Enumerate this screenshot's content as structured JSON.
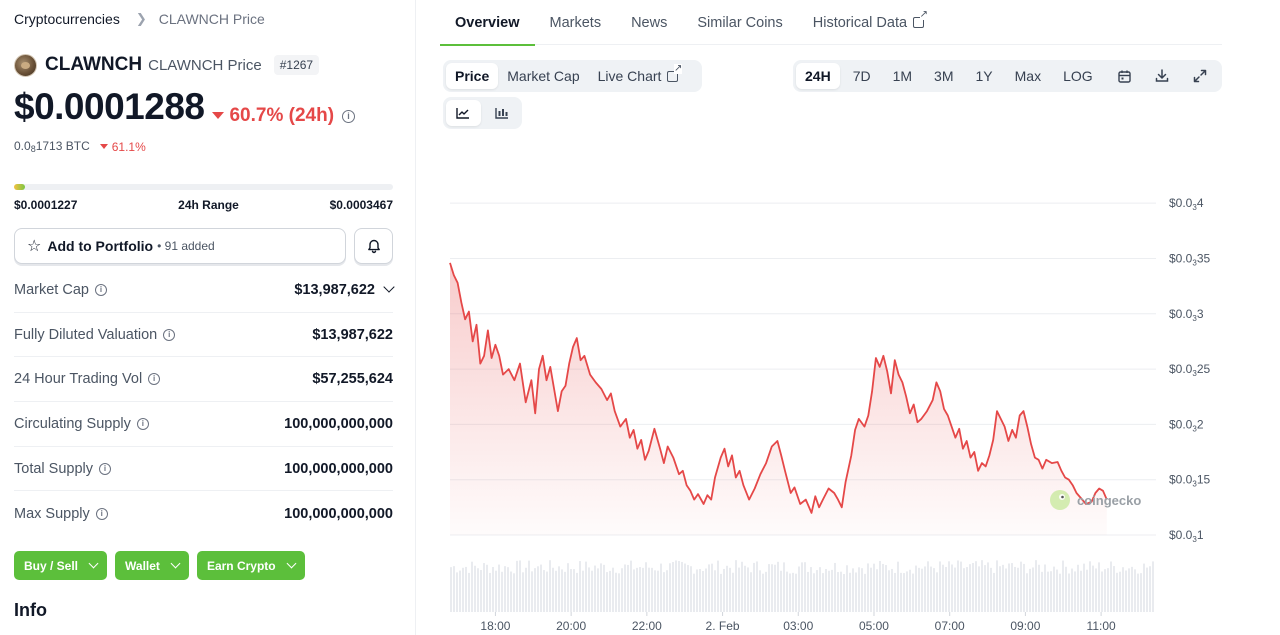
{
  "breadcrumb": {
    "root": "Cryptocurrencies",
    "current": "CLAWNCH Price"
  },
  "coin": {
    "name": "CLAWNCH",
    "subtitle": "CLAWNCH Price",
    "rank": "#1267",
    "price": "$0.0001288",
    "change_24h": "60.7% (24h)",
    "btc_price_prefix": "0.0",
    "btc_price_sub": "8",
    "btc_price_suffix": "1713 BTC",
    "btc_change": "61.1%"
  },
  "range": {
    "low": "$0.0001227",
    "label": "24h Range",
    "high": "$0.0003467",
    "position": 0.03
  },
  "portfolio": {
    "label": "Add to Portfolio",
    "added": "• 91 added"
  },
  "stats": [
    {
      "label": "Market Cap",
      "value": "$13,987,622",
      "dropdown": true
    },
    {
      "label": "Fully Diluted Valuation",
      "value": "$13,987,622"
    },
    {
      "label": "24 Hour Trading Vol",
      "value": "$57,255,624"
    },
    {
      "label": "Circulating Supply",
      "value": "100,000,000,000"
    },
    {
      "label": "Total Supply",
      "value": "100,000,000,000"
    },
    {
      "label": "Max Supply",
      "value": "100,000,000,000"
    }
  ],
  "actions": {
    "buy_sell": "Buy / Sell",
    "wallet": "Wallet",
    "earn": "Earn Crypto"
  },
  "info_heading": "Info",
  "tabs": {
    "overview": "Overview",
    "markets": "Markets",
    "news": "News",
    "similar": "Similar Coins",
    "historical": "Historical Data"
  },
  "chart_controls": {
    "price": "Price",
    "market_cap": "Market Cap",
    "live_chart": "Live Chart",
    "ranges": [
      "24H",
      "7D",
      "1M",
      "3M",
      "1Y",
      "Max",
      "LOG"
    ],
    "active_range": "24H"
  },
  "chart_data": {
    "type": "area",
    "color": "#e54848",
    "watermark": "coingecko",
    "ylim": [
      0.0001,
      0.00043
    ],
    "y_ticks": [
      {
        "value": 0.0004,
        "prefix": "$0.0",
        "sub": "3",
        "suffix": "4"
      },
      {
        "value": 0.00035,
        "prefix": "$0.0",
        "sub": "3",
        "suffix": "35"
      },
      {
        "value": 0.0003,
        "prefix": "$0.0",
        "sub": "3",
        "suffix": "3"
      },
      {
        "value": 0.00025,
        "prefix": "$0.0",
        "sub": "3",
        "suffix": "25"
      },
      {
        "value": 0.0002,
        "prefix": "$0.0",
        "sub": "3",
        "suffix": "2"
      },
      {
        "value": 0.00015,
        "prefix": "$0.0",
        "sub": "3",
        "suffix": "15"
      },
      {
        "value": 0.0001,
        "prefix": "$0.0",
        "sub": "3",
        "suffix": "1"
      }
    ],
    "x_ticks": [
      "18:00",
      "20:00",
      "22:00",
      "2. Feb",
      "03:00",
      "05:00",
      "07:00",
      "09:00",
      "11:00"
    ],
    "x_tick_hours": [
      1,
      3,
      5,
      7,
      9,
      11,
      13,
      15,
      17
    ],
    "x_range_hours": [
      -0.2,
      18.45
    ],
    "series": [
      {
        "values": [
          [
            -0.2,
            0.000346
          ],
          [
            -0.1,
            0.000335
          ],
          [
            0.0,
            0.000328
          ],
          [
            0.1,
            0.00031
          ],
          [
            0.2,
            0.000295
          ],
          [
            0.3,
            0.000302
          ],
          [
            0.4,
            0.000275
          ],
          [
            0.5,
            0.00029
          ],
          [
            0.6,
            0.000255
          ],
          [
            0.7,
            0.000262
          ],
          [
            0.8,
            0.000285
          ],
          [
            0.9,
            0.00026
          ],
          [
            1.0,
            0.000272
          ],
          [
            1.1,
            0.000262
          ],
          [
            1.2,
            0.000245
          ],
          [
            1.35,
            0.00025
          ],
          [
            1.5,
            0.00024
          ],
          [
            1.65,
            0.000255
          ],
          [
            1.8,
            0.00022
          ],
          [
            1.95,
            0.00024
          ],
          [
            2.05,
            0.00021
          ],
          [
            2.15,
            0.00025
          ],
          [
            2.25,
            0.000262
          ],
          [
            2.35,
            0.00024
          ],
          [
            2.45,
            0.000252
          ],
          [
            2.55,
            0.000232
          ],
          [
            2.65,
            0.000212
          ],
          [
            2.75,
            0.00023
          ],
          [
            2.85,
            0.000235
          ],
          [
            2.95,
            0.000255
          ],
          [
            3.05,
            0.00027
          ],
          [
            3.15,
            0.000278
          ],
          [
            3.25,
            0.000258
          ],
          [
            3.35,
            0.000262
          ],
          [
            3.5,
            0.000245
          ],
          [
            3.65,
            0.000238
          ],
          [
            3.8,
            0.000232
          ],
          [
            3.95,
            0.000222
          ],
          [
            4.05,
            0.000228
          ],
          [
            4.15,
            0.000212
          ],
          [
            4.3,
            0.000198
          ],
          [
            4.45,
            0.000205
          ],
          [
            4.55,
            0.000188
          ],
          [
            4.65,
            0.000195
          ],
          [
            4.75,
            0.000178
          ],
          [
            4.85,
            0.000186
          ],
          [
            4.95,
            0.000168
          ],
          [
            5.05,
            0.000176
          ],
          [
            5.2,
            0.000196
          ],
          [
            5.35,
            0.000178
          ],
          [
            5.45,
            0.000165
          ],
          [
            5.55,
            0.00018
          ],
          [
            5.7,
            0.00017
          ],
          [
            5.85,
            0.000155
          ],
          [
            5.95,
            0.000158
          ],
          [
            6.05,
            0.000145
          ],
          [
            6.15,
            0.00014
          ],
          [
            6.25,
            0.000132
          ],
          [
            6.35,
            0.000137
          ],
          [
            6.5,
            0.000128
          ],
          [
            6.6,
            0.000136
          ],
          [
            6.7,
            0.000132
          ],
          [
            6.8,
            0.000152
          ],
          [
            6.95,
            0.00017
          ],
          [
            7.05,
            0.000178
          ],
          [
            7.15,
            0.000162
          ],
          [
            7.25,
            0.000172
          ],
          [
            7.35,
            0.000152
          ],
          [
            7.45,
            0.000158
          ],
          [
            7.55,
            0.000145
          ],
          [
            7.7,
            0.000132
          ],
          [
            7.85,
            0.000142
          ],
          [
            8.0,
            0.000155
          ],
          [
            8.15,
            0.000165
          ],
          [
            8.3,
            0.00018
          ],
          [
            8.45,
            0.000185
          ],
          [
            8.55,
            0.000172
          ],
          [
            8.65,
            0.000158
          ],
          [
            8.8,
            0.000138
          ],
          [
            8.9,
            0.000143
          ],
          [
            9.05,
            0.000128
          ],
          [
            9.2,
            0.000132
          ],
          [
            9.35,
            0.00012
          ],
          [
            9.45,
            0.000135
          ],
          [
            9.55,
            0.000125
          ],
          [
            9.65,
            0.000132
          ],
          [
            9.8,
            0.000142
          ],
          [
            9.95,
            0.000138
          ],
          [
            10.05,
            0.000132
          ],
          [
            10.15,
            0.000125
          ],
          [
            10.25,
            0.000148
          ],
          [
            10.4,
            0.000172
          ],
          [
            10.5,
            0.000195
          ],
          [
            10.6,
            0.000205
          ],
          [
            10.75,
            0.000198
          ],
          [
            10.85,
            0.000208
          ],
          [
            10.95,
            0.00023
          ],
          [
            11.05,
            0.00026
          ],
          [
            11.15,
            0.000252
          ],
          [
            11.25,
            0.000262
          ],
          [
            11.35,
            0.000248
          ],
          [
            11.45,
            0.000228
          ],
          [
            11.55,
            0.000258
          ],
          [
            11.65,
            0.000245
          ],
          [
            11.75,
            0.000238
          ],
          [
            11.85,
            0.000225
          ],
          [
            11.95,
            0.00021
          ],
          [
            12.05,
            0.000218
          ],
          [
            12.15,
            0.000202
          ],
          [
            12.25,
            0.000205
          ],
          [
            12.4,
            0.000212
          ],
          [
            12.55,
            0.000222
          ],
          [
            12.65,
            0.000238
          ],
          [
            12.75,
            0.00023
          ],
          [
            12.85,
            0.000214
          ],
          [
            12.95,
            0.000208
          ],
          [
            13.05,
            0.000198
          ],
          [
            13.15,
            0.000188
          ],
          [
            13.25,
            0.000196
          ],
          [
            13.35,
            0.000178
          ],
          [
            13.45,
            0.000185
          ],
          [
            13.55,
            0.00017
          ],
          [
            13.65,
            0.000175
          ],
          [
            13.75,
            0.000158
          ],
          [
            13.85,
            0.000165
          ],
          [
            13.95,
            0.000162
          ],
          [
            14.05,
            0.000172
          ],
          [
            14.15,
            0.000186
          ],
          [
            14.25,
            0.000212
          ],
          [
            14.35,
            0.000205
          ],
          [
            14.45,
            0.000198
          ],
          [
            14.55,
            0.000185
          ],
          [
            14.65,
            0.000195
          ],
          [
            14.75,
            0.000188
          ],
          [
            14.85,
            0.000208
          ],
          [
            14.95,
            0.000212
          ],
          [
            15.05,
            0.000198
          ],
          [
            15.15,
            0.000182
          ],
          [
            15.25,
            0.00017
          ],
          [
            15.35,
            0.000168
          ],
          [
            15.45,
            0.00016
          ],
          [
            15.55,
            0.000168
          ],
          [
            15.7,
            0.000165
          ],
          [
            15.85,
            0.000166
          ],
          [
            15.95,
            0.000158
          ],
          [
            16.05,
            0.000152
          ],
          [
            16.15,
            0.00015
          ],
          [
            16.25,
            0.000145
          ],
          [
            16.35,
            0.000138
          ],
          [
            16.45,
            0.000134
          ],
          [
            16.6,
            0.000128
          ],
          [
            16.75,
            0.00013
          ],
          [
            16.85,
            0.000138
          ],
          [
            16.95,
            0.000142
          ],
          [
            17.05,
            0.00014
          ],
          [
            17.15,
            0.000132
          ]
        ]
      }
    ]
  }
}
